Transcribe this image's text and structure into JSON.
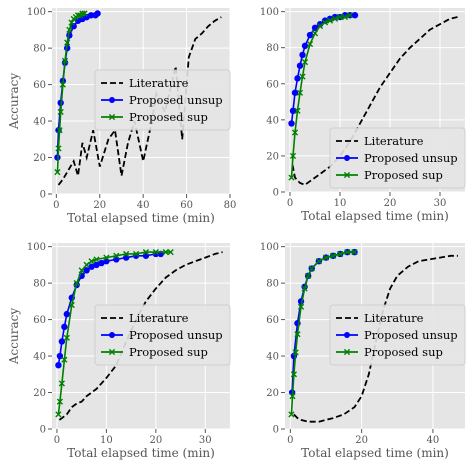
{
  "colors": {
    "panel_bg": "#e5e5e5",
    "grid": "#ffffff",
    "literature": "#000000",
    "unsup": "#0000ff",
    "sup": "#008000",
    "legend_bg": "#e5e5e5",
    "legend_border": "#cccccc"
  },
  "chart_data": [
    {
      "type": "line",
      "xlabel": "Total elapsed time (min)",
      "ylabel": "Accuracy",
      "xlim": [
        -2,
        80
      ],
      "ylim": [
        0,
        102
      ],
      "xticks": [
        0,
        20,
        40,
        60,
        80
      ],
      "yticks": [
        0,
        20,
        40,
        60,
        80,
        100
      ],
      "grid": true,
      "legend_position": "center-right",
      "series": [
        {
          "name": "Literature",
          "style": "dashed",
          "x": [
            1,
            3,
            5,
            8,
            10,
            12,
            14,
            17,
            20,
            24,
            27,
            30,
            33,
            36,
            40,
            44,
            46,
            50,
            55,
            58,
            61,
            64,
            67,
            70,
            73,
            76
          ],
          "y": [
            5,
            8,
            12,
            18,
            10,
            28,
            20,
            35,
            15,
            30,
            35,
            10,
            28,
            40,
            18,
            40,
            55,
            45,
            70,
            30,
            75,
            85,
            88,
            92,
            95,
            97
          ]
        },
        {
          "name": "Proposed unsup",
          "style": "solid-circle",
          "x": [
            0.5,
            1,
            2,
            3,
            4,
            5,
            6,
            8,
            10,
            12,
            14,
            16,
            18,
            19
          ],
          "y": [
            20,
            35,
            50,
            62,
            72,
            80,
            87,
            92,
            95,
            96,
            97,
            98,
            98,
            99
          ]
        },
        {
          "name": "Proposed sup",
          "style": "solid-x",
          "x": [
            0.5,
            1,
            1.5,
            2,
            3,
            4,
            5,
            6,
            7,
            8,
            9,
            10,
            11,
            12,
            13
          ],
          "y": [
            12,
            25,
            35,
            45,
            60,
            73,
            83,
            90,
            94,
            96,
            97,
            98,
            98,
            99,
            99
          ]
        }
      ]
    },
    {
      "type": "line",
      "xlabel": "Total elapsed time (min)",
      "ylabel": "",
      "xlim": [
        -1,
        35
      ],
      "ylim": [
        0,
        102
      ],
      "xticks": [
        0,
        10,
        20,
        30
      ],
      "yticks": [
        0,
        20,
        40,
        60,
        80,
        100
      ],
      "grid": true,
      "legend_position": "lower-right",
      "series": [
        {
          "name": "Literature",
          "style": "dashed",
          "x": [
            0.5,
            1,
            2,
            3,
            4,
            5,
            6,
            8,
            10,
            12,
            14,
            16,
            18,
            20,
            22,
            24,
            26,
            28,
            30,
            32,
            33.5
          ],
          "y": [
            15,
            8,
            5,
            4,
            6,
            8,
            10,
            14,
            20,
            28,
            38,
            48,
            58,
            66,
            74,
            80,
            85,
            90,
            93,
            96,
            97
          ]
        },
        {
          "name": "Proposed unsup",
          "style": "solid-circle",
          "x": [
            0.3,
            0.6,
            1,
            1.5,
            2,
            2.5,
            3,
            4,
            5,
            6,
            7,
            8,
            9,
            10,
            11,
            12,
            13
          ],
          "y": [
            38,
            45,
            55,
            63,
            70,
            76,
            81,
            87,
            91,
            93,
            95,
            96,
            97,
            97,
            98,
            98,
            98
          ]
        },
        {
          "name": "Proposed sup",
          "style": "solid-x",
          "x": [
            0.3,
            0.6,
            1,
            1.5,
            2,
            2.5,
            3,
            4,
            5,
            6,
            7,
            8,
            9,
            10,
            11,
            12
          ],
          "y": [
            8,
            20,
            33,
            45,
            55,
            64,
            72,
            82,
            88,
            92,
            94,
            95,
            96,
            97,
            97,
            98
          ]
        }
      ]
    },
    {
      "type": "line",
      "xlabel": "Total elapsed time (min)",
      "ylabel": "Accuracy",
      "xlim": [
        -1,
        35
      ],
      "ylim": [
        0,
        102
      ],
      "xticks": [
        0,
        10,
        20,
        30
      ],
      "yticks": [
        0,
        20,
        40,
        60,
        80,
        100
      ],
      "grid": true,
      "legend_position": "center-right",
      "series": [
        {
          "name": "Literature",
          "style": "dashed",
          "x": [
            0.5,
            1,
            2,
            3,
            4,
            5,
            6,
            8,
            10,
            12,
            14,
            16,
            18,
            20,
            22,
            24,
            26,
            28,
            30,
            32,
            33.5
          ],
          "y": [
            5,
            6,
            8,
            12,
            14,
            15,
            18,
            22,
            28,
            35,
            48,
            60,
            70,
            77,
            83,
            87,
            90,
            92,
            94,
            96,
            97
          ]
        },
        {
          "name": "Proposed unsup",
          "style": "solid-circle",
          "x": [
            0.3,
            0.6,
            1,
            1.5,
            2,
            3,
            4,
            5,
            6,
            7,
            8,
            9,
            10,
            12,
            14,
            16,
            18,
            20,
            21
          ],
          "y": [
            35,
            40,
            48,
            56,
            63,
            72,
            79,
            84,
            87,
            89,
            90,
            91,
            92,
            93,
            94,
            95,
            95,
            96,
            96
          ]
        },
        {
          "name": "Proposed sup",
          "style": "solid-x",
          "x": [
            0.3,
            0.6,
            1,
            1.5,
            2,
            3,
            4,
            5,
            6,
            7,
            8,
            10,
            12,
            14,
            16,
            18,
            20,
            22,
            23
          ],
          "y": [
            8,
            15,
            25,
            38,
            50,
            68,
            80,
            87,
            90,
            92,
            93,
            94,
            95,
            96,
            96,
            97,
            97,
            97,
            97
          ]
        }
      ]
    },
    {
      "type": "line",
      "xlabel": "Total elapsed time (min)",
      "ylabel": "",
      "xlim": [
        -1.5,
        49
      ],
      "ylim": [
        0,
        102
      ],
      "xticks": [
        0,
        20,
        40
      ],
      "yticks": [
        0,
        20,
        40,
        60,
        80,
        100
      ],
      "grid": true,
      "legend_position": "center-right",
      "series": [
        {
          "name": "Literature",
          "style": "dashed",
          "x": [
            1,
            2,
            3,
            5,
            8,
            10,
            12,
            15,
            18,
            20,
            22,
            24,
            26,
            28,
            30,
            33,
            36,
            39,
            42,
            45,
            47
          ],
          "y": [
            8,
            6,
            5,
            4,
            4,
            5,
            6,
            8,
            12,
            18,
            30,
            48,
            65,
            77,
            84,
            89,
            92,
            93,
            94,
            95,
            95
          ]
        },
        {
          "name": "Proposed unsup",
          "style": "solid-circle",
          "x": [
            0.5,
            1,
            2,
            3,
            4,
            5,
            6,
            8,
            10,
            12,
            14,
            16,
            18
          ],
          "y": [
            20,
            40,
            58,
            70,
            78,
            84,
            88,
            92,
            94,
            95,
            96,
            97,
            97
          ]
        },
        {
          "name": "Proposed sup",
          "style": "solid-x",
          "x": [
            0.3,
            0.6,
            1,
            1.5,
            2,
            3,
            4,
            5,
            6,
            8,
            10,
            12,
            14,
            16,
            18
          ],
          "y": [
            8,
            18,
            30,
            42,
            52,
            67,
            77,
            84,
            88,
            92,
            94,
            95,
            96,
            97,
            97
          ]
        }
      ]
    }
  ]
}
